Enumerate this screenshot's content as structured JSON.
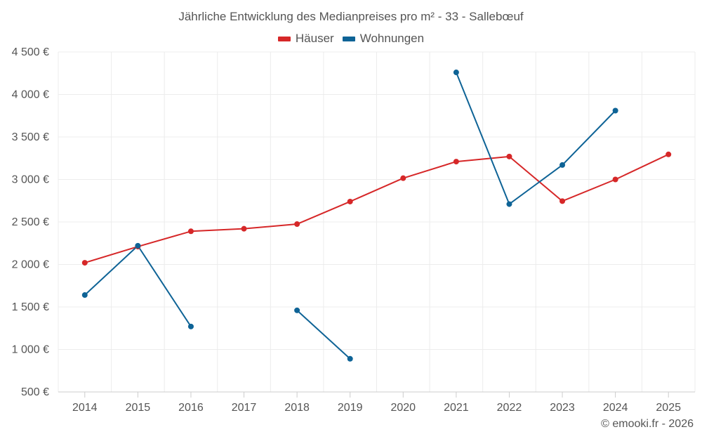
{
  "chart_data": {
    "type": "line",
    "title": "Jährliche Entwicklung des Medianpreises pro m² - 33 - Sallebœuf",
    "x": [
      "2014",
      "2015",
      "2016",
      "2017",
      "2018",
      "2019",
      "2020",
      "2021",
      "2022",
      "2023",
      "2024",
      "2025"
    ],
    "series": [
      {
        "name": "Häuser",
        "color": "#d62728",
        "values": [
          2020,
          2210,
          2390,
          2420,
          2475,
          2740,
          3015,
          3210,
          3270,
          2745,
          3000,
          3295
        ]
      },
      {
        "name": "Wohnungen",
        "color": "#0e6396",
        "values": [
          1640,
          2220,
          1270,
          null,
          1460,
          890,
          null,
          4260,
          2710,
          3170,
          3810,
          null
        ]
      }
    ],
    "ylim": [
      500,
      4500
    ],
    "yticks": [
      500,
      1000,
      1500,
      2000,
      2500,
      3000,
      3500,
      4000,
      4500
    ],
    "ytick_labels": [
      "500 €",
      "1 000 €",
      "1 500 €",
      "2 000 €",
      "2 500 €",
      "3 000 €",
      "3 500 €",
      "4 000 €",
      "4 500 €"
    ],
    "xlabel": "",
    "ylabel": "",
    "grid": true,
    "legend_position": "top-center"
  },
  "footer": {
    "copyright": "© emooki.fr - 2026"
  }
}
